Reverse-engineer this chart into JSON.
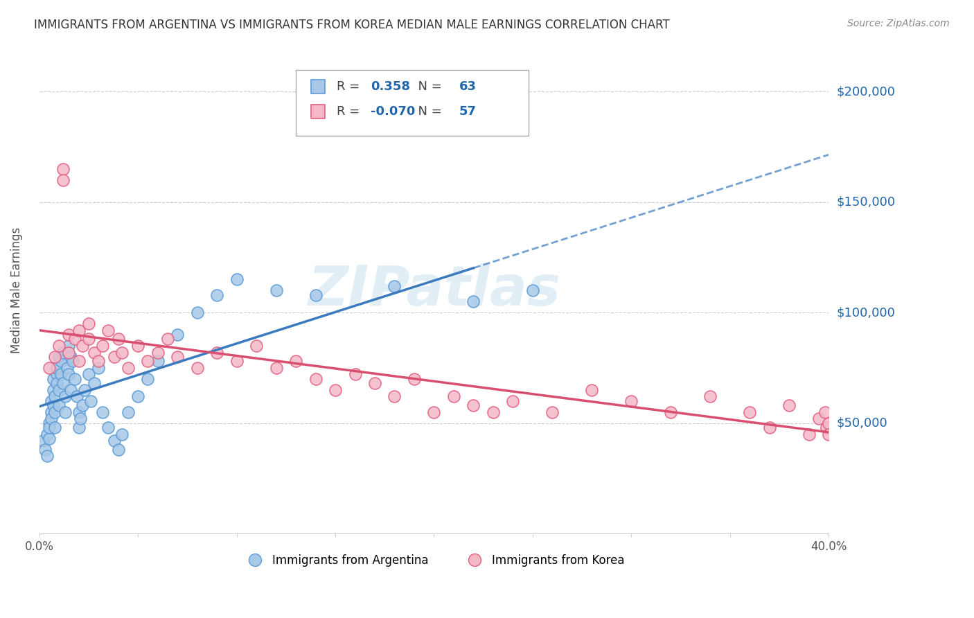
{
  "title": "IMMIGRANTS FROM ARGENTINA VS IMMIGRANTS FROM KOREA MEDIAN MALE EARNINGS CORRELATION CHART",
  "source": "Source: ZipAtlas.com",
  "ylabel": "Median Male Earnings",
  "xlim": [
    0.0,
    0.4
  ],
  "ylim": [
    0,
    220000
  ],
  "yticks": [
    0,
    50000,
    100000,
    150000,
    200000
  ],
  "xticks": [
    0.0,
    0.05,
    0.1,
    0.15,
    0.2,
    0.25,
    0.3,
    0.35,
    0.4
  ],
  "argentina_R": 0.358,
  "argentina_N": 63,
  "korea_R": -0.07,
  "korea_N": 57,
  "argentina_fill_color": "#a8c8e8",
  "argentina_edge_color": "#5b9bd5",
  "korea_fill_color": "#f4b8c8",
  "korea_edge_color": "#e06080",
  "argentina_line_color": "#3a7abf",
  "korea_line_color": "#d94f70",
  "watermark": "ZIPatlas",
  "background_color": "#ffffff",
  "grid_color": "#cccccc",
  "yaxis_label_color": "#2166ac",
  "argentina_x": [
    0.002,
    0.003,
    0.004,
    0.004,
    0.005,
    0.005,
    0.005,
    0.006,
    0.006,
    0.006,
    0.007,
    0.007,
    0.007,
    0.008,
    0.008,
    0.008,
    0.009,
    0.009,
    0.009,
    0.01,
    0.01,
    0.01,
    0.011,
    0.011,
    0.012,
    0.012,
    0.013,
    0.013,
    0.014,
    0.015,
    0.015,
    0.016,
    0.016,
    0.017,
    0.018,
    0.019,
    0.02,
    0.02,
    0.021,
    0.022,
    0.023,
    0.025,
    0.026,
    0.028,
    0.03,
    0.032,
    0.035,
    0.038,
    0.04,
    0.042,
    0.045,
    0.05,
    0.055,
    0.06,
    0.07,
    0.08,
    0.09,
    0.1,
    0.12,
    0.14,
    0.18,
    0.22,
    0.25
  ],
  "argentina_y": [
    42000,
    38000,
    45000,
    35000,
    50000,
    43000,
    48000,
    55000,
    60000,
    52000,
    65000,
    58000,
    70000,
    62000,
    55000,
    48000,
    72000,
    68000,
    75000,
    80000,
    58000,
    65000,
    78000,
    72000,
    82000,
    68000,
    55000,
    62000,
    75000,
    85000,
    72000,
    80000,
    65000,
    78000,
    70000,
    62000,
    55000,
    48000,
    52000,
    58000,
    65000,
    72000,
    60000,
    68000,
    75000,
    55000,
    48000,
    42000,
    38000,
    45000,
    55000,
    62000,
    70000,
    78000,
    90000,
    100000,
    108000,
    115000,
    110000,
    108000,
    112000,
    105000,
    110000
  ],
  "korea_x": [
    0.005,
    0.008,
    0.01,
    0.012,
    0.012,
    0.015,
    0.015,
    0.018,
    0.02,
    0.02,
    0.022,
    0.025,
    0.025,
    0.028,
    0.03,
    0.032,
    0.035,
    0.038,
    0.04,
    0.042,
    0.045,
    0.05,
    0.055,
    0.06,
    0.065,
    0.07,
    0.08,
    0.09,
    0.1,
    0.11,
    0.12,
    0.13,
    0.14,
    0.15,
    0.16,
    0.17,
    0.18,
    0.19,
    0.2,
    0.21,
    0.22,
    0.23,
    0.24,
    0.26,
    0.28,
    0.3,
    0.32,
    0.34,
    0.36,
    0.37,
    0.38,
    0.39,
    0.395,
    0.398,
    0.399,
    0.4,
    0.4
  ],
  "korea_y": [
    75000,
    80000,
    85000,
    165000,
    160000,
    90000,
    82000,
    88000,
    92000,
    78000,
    85000,
    95000,
    88000,
    82000,
    78000,
    85000,
    92000,
    80000,
    88000,
    82000,
    75000,
    85000,
    78000,
    82000,
    88000,
    80000,
    75000,
    82000,
    78000,
    85000,
    75000,
    78000,
    70000,
    65000,
    72000,
    68000,
    62000,
    70000,
    55000,
    62000,
    58000,
    55000,
    60000,
    55000,
    65000,
    60000,
    55000,
    62000,
    55000,
    48000,
    58000,
    45000,
    52000,
    55000,
    48000,
    50000,
    45000
  ]
}
